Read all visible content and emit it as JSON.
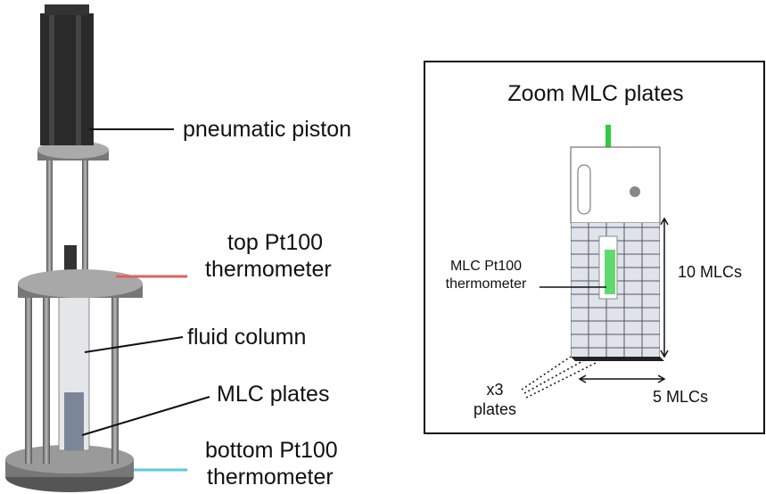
{
  "labels": {
    "piston": "pneumatic piston",
    "top_thermometer": [
      "top Pt100",
      "thermometer"
    ],
    "fluid_column": "fluid column",
    "mlc_plates": "MLC plates",
    "bottom_thermometer": [
      "bottom Pt100",
      "thermometer"
    ]
  },
  "zoom": {
    "title": "Zoom MLC plates",
    "mlc_thermometer": [
      "MLC Pt100",
      "thermometer"
    ],
    "height_count": "10 MLCs",
    "plates": [
      "x3",
      "plates"
    ],
    "width_count": "5 MLCs"
  }
}
